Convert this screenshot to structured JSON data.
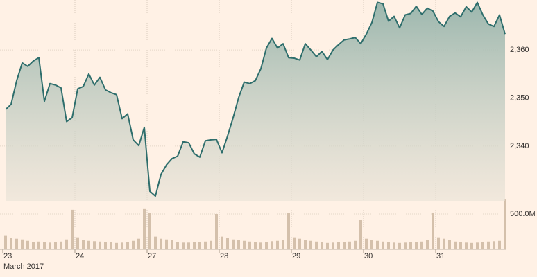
{
  "chart_data": {
    "type": "line",
    "xlabel": "March 2017",
    "categories": [
      "23",
      null,
      null,
      null,
      null,
      null,
      null,
      null,
      null,
      null,
      null,
      null,
      null,
      "24",
      null,
      null,
      null,
      null,
      null,
      null,
      null,
      null,
      null,
      null,
      null,
      null,
      "27",
      null,
      null,
      null,
      null,
      null,
      null,
      null,
      null,
      null,
      null,
      null,
      null,
      "28",
      null,
      null,
      null,
      null,
      null,
      null,
      null,
      null,
      null,
      null,
      null,
      null,
      "29",
      null,
      null,
      null,
      null,
      null,
      null,
      null,
      null,
      null,
      null,
      null,
      null,
      "30",
      null,
      null,
      null,
      null,
      null,
      null,
      null,
      null,
      null,
      null,
      null,
      null,
      "31",
      null,
      null,
      null,
      null,
      null,
      null,
      null,
      null,
      null,
      null,
      null,
      null
    ],
    "values": [
      2347.6,
      2348.7,
      2353.6,
      2357.3,
      2356.6,
      2357.7,
      2358.4,
      2349.3,
      2353.0,
      2352.7,
      2352.1,
      2345.1,
      2345.9,
      2351.9,
      2352.4,
      2355.0,
      2352.7,
      2354.3,
      2351.7,
      2351.1,
      2350.7,
      2345.7,
      2346.7,
      2341.3,
      2340.1,
      2343.9,
      2330.6,
      2329.6,
      2334.1,
      2336.1,
      2337.4,
      2337.9,
      2340.9,
      2340.7,
      2338.4,
      2337.7,
      2341.1,
      2341.3,
      2341.4,
      2338.6,
      2342.1,
      2345.9,
      2350.1,
      2353.3,
      2353.0,
      2353.6,
      2356.1,
      2360.4,
      2362.4,
      2360.4,
      2361.3,
      2358.4,
      2358.3,
      2357.9,
      2361.3,
      2360.0,
      2358.6,
      2359.7,
      2358.0,
      2360.0,
      2361.1,
      2362.1,
      2362.3,
      2362.6,
      2361.3,
      2363.3,
      2365.7,
      2369.9,
      2369.6,
      2366.0,
      2367.0,
      2364.6,
      2367.3,
      2367.6,
      2369.1,
      2367.4,
      2368.7,
      2368.1,
      2365.9,
      2364.9,
      2367.0,
      2367.7,
      2366.9,
      2369.0,
      2367.9,
      2369.9,
      2367.3,
      2365.4,
      2364.9,
      2367.3,
      2363.3
    ],
    "color": "#2e6e6c",
    "volume": {
      "axis": "y2",
      "color": "#d4c0ab",
      "values": [
        190,
        160,
        150,
        140,
        120,
        100,
        110,
        100,
        95,
        100,
        110,
        140,
        560,
        170,
        130,
        120,
        115,
        110,
        100,
        100,
        90,
        95,
        100,
        120,
        150,
        570,
        510,
        180,
        150,
        140,
        130,
        100,
        95,
        95,
        100,
        105,
        110,
        120,
        500,
        180,
        160,
        140,
        130,
        120,
        110,
        100,
        95,
        105,
        115,
        120,
        130,
        510,
        170,
        150,
        130,
        120,
        110,
        100,
        90,
        95,
        100,
        105,
        110,
        120,
        420,
        150,
        130,
        120,
        110,
        100,
        95,
        90,
        95,
        100,
        105,
        110,
        130,
        520,
        170,
        150,
        130,
        110,
        100,
        95,
        90,
        95,
        100,
        110,
        115,
        120,
        705
      ]
    },
    "ylim": [
      2328.6,
      2370.4
    ],
    "yticks": [
      {
        "value": 2340,
        "label": "2,340"
      },
      {
        "value": 2350,
        "label": "2,350"
      },
      {
        "value": 2360,
        "label": "2,360"
      }
    ],
    "y2lim": [
      0,
      700
    ],
    "y2ticks": [
      {
        "value": 500,
        "label": "500.0M"
      }
    ],
    "grid": true
  }
}
